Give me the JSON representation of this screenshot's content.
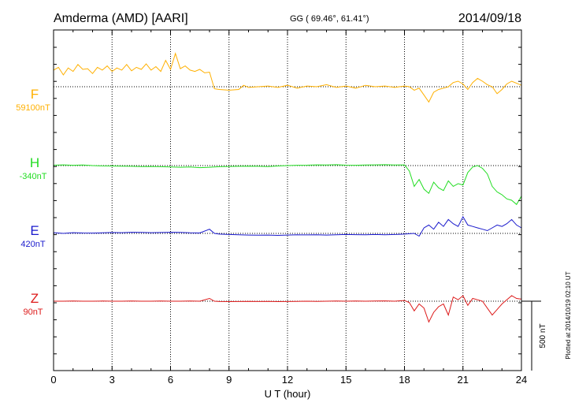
{
  "header": {
    "station": "Amderma (AMD)  [AARI]",
    "coords": "GG ( 69.46°,  61.41°)",
    "date": "2014/09/18"
  },
  "plotted_note": "Plotted at 2014/10/19 02:10 UT",
  "colors": {
    "F": "#ffb000",
    "H": "#22dd22",
    "E": "#1a1acc",
    "Z": "#dd1a1a",
    "axis": "#000000"
  },
  "chart_data": {
    "type": "line",
    "title": "",
    "xlabel": "U T (hour)",
    "xlim": [
      0,
      24
    ],
    "x_ticks": [
      0,
      3,
      6,
      9,
      12,
      15,
      18,
      21,
      24
    ],
    "x_tick_labels": [
      "0",
      "3",
      "6",
      "9",
      "12",
      "15",
      "18",
      "21",
      "24"
    ],
    "grid": true,
    "scale_bar": {
      "label": "500 nT",
      "value_nT": 500
    },
    "series": [
      {
        "name": "F",
        "baseline_label": "59100nT",
        "color": "#ffb000",
        "x": [
          0,
          0.25,
          0.5,
          0.75,
          1,
          1.25,
          1.5,
          1.75,
          2,
          2.25,
          2.5,
          2.75,
          3,
          3.25,
          3.5,
          3.75,
          4,
          4.25,
          4.5,
          4.75,
          5,
          5.25,
          5.5,
          5.75,
          6,
          6.25,
          6.5,
          6.75,
          7,
          7.25,
          7.5,
          7.75,
          8,
          8.25,
          8.5,
          9,
          9.5,
          9.75,
          10,
          10.5,
          11,
          11.5,
          12,
          12.5,
          13,
          13.5,
          14,
          14.5,
          15,
          15.5,
          16,
          16.5,
          17,
          17.5,
          18,
          18.25,
          18.5,
          18.75,
          19,
          19.25,
          19.5,
          19.75,
          20,
          20.25,
          20.5,
          20.75,
          21,
          21.25,
          21.5,
          21.75,
          22,
          22.25,
          22.5,
          22.75,
          23,
          23.25,
          23.5,
          23.75,
          24
        ],
        "values": [
          120,
          140,
          85,
          135,
          110,
          160,
          125,
          130,
          95,
          140,
          120,
          150,
          110,
          135,
          120,
          160,
          115,
          140,
          125,
          165,
          120,
          145,
          110,
          190,
          125,
          240,
          130,
          150,
          120,
          110,
          125,
          100,
          105,
          -15,
          -20,
          -25,
          -20,
          10,
          -5,
          0,
          5,
          -5,
          10,
          -10,
          5,
          0,
          15,
          -5,
          5,
          -10,
          10,
          0,
          5,
          -5,
          5,
          0,
          -25,
          -10,
          -60,
          -110,
          -40,
          -20,
          -10,
          0,
          30,
          40,
          20,
          -20,
          30,
          60,
          40,
          15,
          0,
          -50,
          -20,
          20,
          40,
          25,
          10
        ]
      },
      {
        "name": "H",
        "baseline_label": "-340nT",
        "color": "#22dd22",
        "x": [
          0,
          0.5,
          1,
          1.5,
          2,
          2.5,
          3,
          3.5,
          4,
          4.5,
          5,
          5.5,
          6,
          6.5,
          7,
          7.5,
          8,
          8.5,
          9,
          9.5,
          10,
          10.5,
          11,
          11.5,
          12,
          12.5,
          13,
          13.5,
          14,
          14.5,
          15,
          15.5,
          16,
          16.5,
          17,
          17.5,
          18,
          18.25,
          18.5,
          18.75,
          19,
          19.25,
          19.5,
          19.75,
          20,
          20.25,
          20.5,
          20.75,
          21,
          21.25,
          21.5,
          21.75,
          22,
          22.25,
          22.5,
          22.75,
          23,
          23.25,
          23.5,
          23.75,
          24
        ],
        "values": [
          3,
          5,
          2,
          4,
          0,
          -2,
          -3,
          -4,
          -5,
          -7,
          -6,
          -8,
          -10,
          -12,
          -10,
          -15,
          -12,
          -8,
          -6,
          -5,
          -4,
          -5,
          -7,
          -3,
          0,
          2,
          3,
          5,
          4,
          6,
          3,
          2,
          4,
          5,
          6,
          4,
          5,
          -40,
          -150,
          -100,
          -170,
          -200,
          -120,
          -160,
          -180,
          -110,
          -150,
          -130,
          -140,
          -50,
          -10,
          0,
          -20,
          -60,
          -150,
          -190,
          -210,
          -240,
          -250,
          -280,
          -220
        ]
      },
      {
        "name": "E",
        "baseline_label": "420nT",
        "color": "#1a1acc",
        "x": [
          0,
          0.5,
          1,
          1.5,
          2,
          2.5,
          3,
          3.5,
          4,
          4.5,
          5,
          5.5,
          6,
          6.5,
          7,
          7.5,
          8,
          8.25,
          8.5,
          9,
          9.5,
          10,
          10.5,
          11,
          11.5,
          12,
          12.5,
          13,
          13.5,
          14,
          14.5,
          15,
          15.5,
          16,
          16.5,
          17,
          17.5,
          18,
          18.5,
          18.75,
          19,
          19.25,
          19.5,
          19.75,
          20,
          20.25,
          20.5,
          20.75,
          21,
          21.25,
          21.5,
          21.75,
          22,
          22.25,
          22.5,
          22.75,
          23,
          23.25,
          23.5,
          23.75,
          24
        ],
        "values": [
          5,
          0,
          5,
          3,
          2,
          4,
          6,
          5,
          8,
          7,
          5,
          6,
          8,
          7,
          4,
          3,
          30,
          0,
          -5,
          -8,
          -10,
          -12,
          -13,
          -12,
          -14,
          -12,
          -10,
          -11,
          -10,
          -12,
          -10,
          -8,
          -9,
          -10,
          -8,
          -10,
          -8,
          -5,
          0,
          -20,
          40,
          60,
          30,
          80,
          50,
          100,
          70,
          50,
          120,
          60,
          50,
          40,
          30,
          20,
          40,
          60,
          50,
          70,
          100,
          60,
          40
        ]
      },
      {
        "name": "Z",
        "baseline_label": "90nT",
        "color": "#dd1a1a",
        "x": [
          0,
          0.5,
          1,
          1.5,
          2,
          2.5,
          3,
          3.5,
          4,
          4.5,
          5,
          5.5,
          6,
          6.5,
          7,
          7.5,
          8,
          8.25,
          8.5,
          9,
          9.5,
          10,
          10.5,
          11,
          11.5,
          12,
          12.5,
          13,
          13.5,
          14,
          14.5,
          15,
          15.5,
          16,
          16.5,
          17,
          17.5,
          18,
          18.25,
          18.5,
          18.75,
          19,
          19.25,
          19.5,
          19.75,
          20,
          20.25,
          20.5,
          20.75,
          21,
          21.25,
          21.5,
          21.75,
          22,
          22.25,
          22.5,
          22.75,
          23,
          23.25,
          23.5,
          23.75,
          24
        ],
        "values": [
          0,
          0,
          1,
          0,
          0,
          1,
          0,
          0,
          1,
          0,
          0,
          1,
          0,
          0,
          1,
          0,
          20,
          0,
          -2,
          -3,
          -2,
          -1,
          -2,
          -1,
          -3,
          -2,
          -1,
          0,
          -1,
          0,
          1,
          0,
          1,
          0,
          1,
          2,
          0,
          5,
          -10,
          -70,
          -20,
          -50,
          -150,
          -80,
          -40,
          -20,
          -100,
          30,
          10,
          40,
          -30,
          20,
          10,
          0,
          -50,
          -100,
          -60,
          -20,
          10,
          40,
          20,
          15
        ]
      }
    ]
  }
}
